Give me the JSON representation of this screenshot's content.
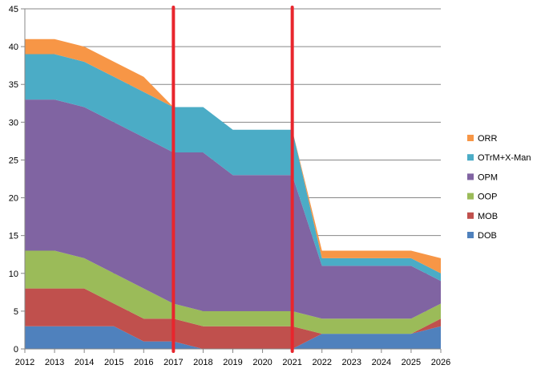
{
  "chart_data": {
    "type": "area",
    "stacked": true,
    "x": [
      2012,
      2013,
      2014,
      2015,
      2016,
      2017,
      2018,
      2019,
      2020,
      2021,
      2022,
      2023,
      2024,
      2025,
      2026
    ],
    "series": [
      {
        "name": "DOB",
        "color": "#4f81bd",
        "values": [
          3,
          3,
          3,
          3,
          1,
          1,
          0,
          0,
          0,
          0,
          2,
          2,
          2,
          2,
          3
        ]
      },
      {
        "name": "MOB",
        "color": "#c0504d",
        "values": [
          5,
          5,
          5,
          3,
          3,
          3,
          3,
          3,
          3,
          3,
          0,
          0,
          0,
          0,
          1
        ]
      },
      {
        "name": "OOP",
        "color": "#9bbb59",
        "values": [
          5,
          5,
          4,
          4,
          4,
          2,
          2,
          2,
          2,
          2,
          2,
          2,
          2,
          2,
          2
        ]
      },
      {
        "name": "OPM",
        "color": "#8064a2",
        "values": [
          20,
          20,
          20,
          20,
          20,
          20,
          21,
          18,
          18,
          18,
          7,
          7,
          7,
          7,
          3
        ]
      },
      {
        "name": "OTrM+X-Man",
        "color": "#4bacc6",
        "values": [
          6,
          6,
          6,
          6,
          6,
          6,
          6,
          6,
          6,
          6,
          1,
          1,
          1,
          1,
          1
        ]
      },
      {
        "name": "ORR",
        "color": "#f79646",
        "values": [
          2,
          2,
          2,
          2,
          2,
          0,
          0,
          0,
          0,
          0,
          1,
          1,
          1,
          1,
          2
        ]
      }
    ],
    "ylim": [
      0,
      45
    ],
    "yticks": [
      0,
      5,
      10,
      15,
      20,
      25,
      30,
      35,
      40,
      45
    ],
    "grid": true,
    "legend_position": "right",
    "legend_order": [
      "ORR",
      "OTrM+X-Man",
      "OPM",
      "OOP",
      "MOB",
      "DOB"
    ],
    "markers": [
      {
        "x": 2017,
        "color": "#e8262d"
      },
      {
        "x": 2021,
        "color": "#e8262d"
      }
    ],
    "title": "",
    "xlabel": "",
    "ylabel": ""
  }
}
